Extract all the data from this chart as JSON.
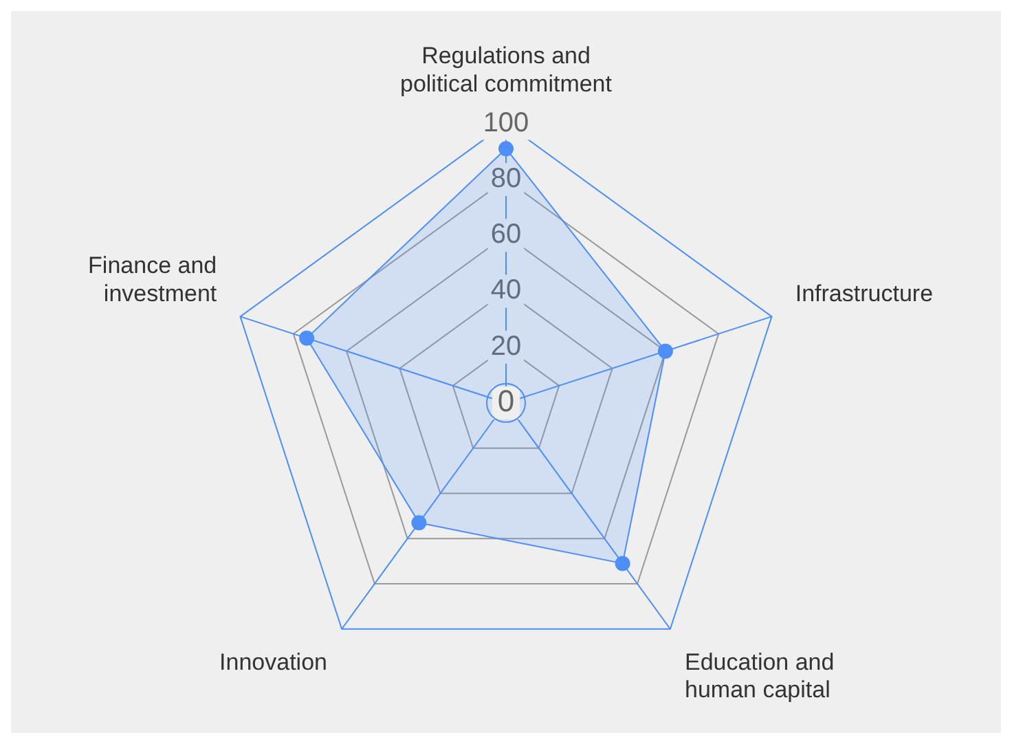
{
  "chart_data": {
    "type": "radar",
    "categories": [
      "Regulations and political commitment",
      "Infrastructure",
      "Education and human capital",
      "Innovation",
      "Finance and investment"
    ],
    "series": [
      {
        "color": "#4d8ef8",
        "values": [
          91,
          60,
          71,
          53,
          75
        ]
      }
    ],
    "ylim": [
      0,
      100
    ],
    "yticks": [
      0,
      20,
      40,
      60,
      80,
      100
    ],
    "grid": true,
    "marker": "circle",
    "legend": false
  }
}
